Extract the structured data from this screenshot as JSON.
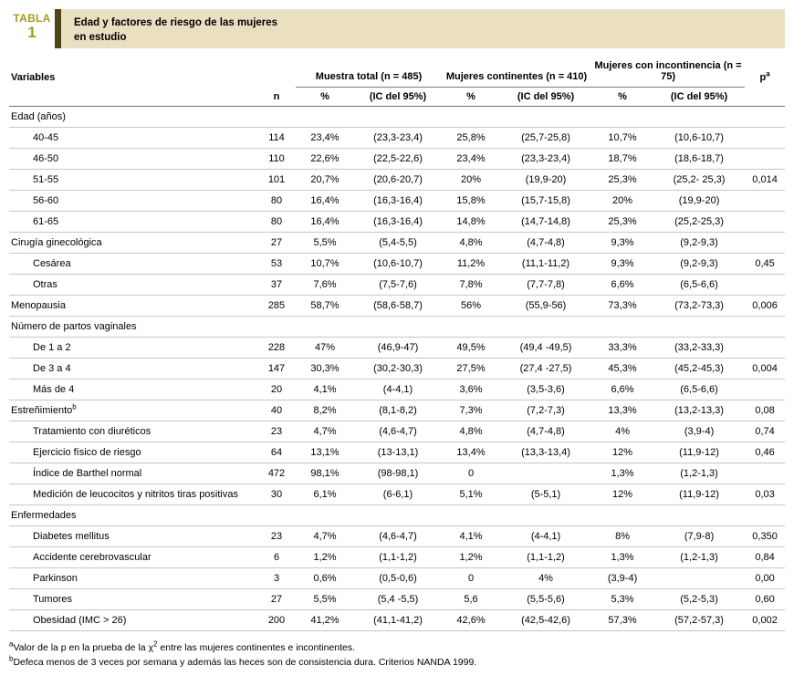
{
  "header": {
    "table_label": "TABLA",
    "table_number": "1",
    "title_line1": "Edad y factores de riesgo de las mujeres",
    "title_line2": "en estudio"
  },
  "table": {
    "columns": {
      "variables": "Variables",
      "n": "n",
      "pct": "%",
      "ic": "(IC del 95%)",
      "p": "p",
      "p_sup": "a",
      "groups": [
        {
          "label": "Muestra total (n = 485)"
        },
        {
          "label": "Mujeres continentes (n = 410)"
        },
        {
          "label": "Mujeres con incontinencia (n = 75)"
        }
      ]
    },
    "rows": [
      {
        "section": true,
        "label": "Edad (años)"
      },
      {
        "label": "40-45",
        "indent": true,
        "n": "114",
        "t_pct": "23,4%",
        "t_ic": "(23,3-23,4)",
        "c_pct": "25,8%",
        "c_ic": "(25,7-25,8)",
        "i_pct": "10,7%",
        "i_ic": "(10,6-10,7)",
        "p": ""
      },
      {
        "label": "46-50",
        "indent": true,
        "n": "110",
        "t_pct": "22,6%",
        "t_ic": "(22,5-22,6)",
        "c_pct": "23,4%",
        "c_ic": "(23,3-23,4)",
        "i_pct": "18,7%",
        "i_ic": "(18,6-18,7)",
        "p": ""
      },
      {
        "label": "51-55",
        "indent": true,
        "n": "101",
        "t_pct": "20,7%",
        "t_ic": "(20,6-20,7)",
        "c_pct": "20%",
        "c_ic": "(19,9-20)",
        "i_pct": "25,3%",
        "i_ic": "(25,2- 25,3)",
        "p": "0,014"
      },
      {
        "label": "56-60",
        "indent": true,
        "n": "80",
        "t_pct": "16,4%",
        "t_ic": "(16,3-16,4)",
        "c_pct": "15,8%",
        "c_ic": "(15,7-15,8)",
        "i_pct": "20%",
        "i_ic": "(19,9-20)",
        "p": ""
      },
      {
        "label": "61-65",
        "indent": true,
        "n": "80",
        "t_pct": "16,4%",
        "t_ic": "(16,3-16,4)",
        "c_pct": "14,8%",
        "c_ic": "(14,7-14,8)",
        "i_pct": "25,3%",
        "i_ic": "(25,2-25,3)",
        "p": ""
      },
      {
        "label": "Cirugía ginecológica",
        "indent": false,
        "n": "27",
        "t_pct": "5,5%",
        "t_ic": "(5,4-5,5)",
        "c_pct": "4,8%",
        "c_ic": "(4,7-4,8)",
        "i_pct": "9,3%",
        "i_ic": "(9,2-9,3)",
        "p": ""
      },
      {
        "label": "Cesárea",
        "indent": true,
        "n": "53",
        "t_pct": "10,7%",
        "t_ic": "(10,6-10,7)",
        "c_pct": "11,2%",
        "c_ic": "(11,1-11,2)",
        "i_pct": "9,3%",
        "i_ic": "(9,2-9,3)",
        "p": "0,45"
      },
      {
        "label": "Otras",
        "indent": true,
        "n": "37",
        "t_pct": "7,6%",
        "t_ic": "(7,5-7,6)",
        "c_pct": "7,8%",
        "c_ic": "(7,7-7,8)",
        "i_pct": "6,6%",
        "i_ic": "(6,5-6,6)",
        "p": ""
      },
      {
        "label": "Menopausia",
        "indent": false,
        "n": "285",
        "t_pct": "58,7%",
        "t_ic": "(58,6-58,7)",
        "c_pct": "56%",
        "c_ic": "(55,9-56)",
        "i_pct": "73,3%",
        "i_ic": "(73,2-73,3)",
        "p": "0,006"
      },
      {
        "section": true,
        "label": "Número de partos vaginales"
      },
      {
        "label": "De 1 a 2",
        "indent": true,
        "n": "228",
        "t_pct": "47%",
        "t_ic": "(46,9-47)",
        "c_pct": "49,5%",
        "c_ic": "(49,4 -49,5)",
        "i_pct": "33,3%",
        "i_ic": "(33,2-33,3)",
        "p": ""
      },
      {
        "label": "De 3 a 4",
        "indent": true,
        "n": "147",
        "t_pct": "30,3%",
        "t_ic": "(30,2-30,3)",
        "c_pct": "27,5%",
        "c_ic": "(27,4 -27,5)",
        "i_pct": "45,3%",
        "i_ic": "(45,2-45,3)",
        "p": "0,004"
      },
      {
        "label": "Más de 4",
        "indent": true,
        "n": "20",
        "t_pct": "4,1%",
        "t_ic": "(4-4,1)",
        "c_pct": "3,6%",
        "c_ic": "(3,5-3,6)",
        "i_pct": "6,6%",
        "i_ic": "(6,5-6,6)",
        "p": ""
      },
      {
        "label": "Estreñimiento",
        "sup": "b",
        "indent": false,
        "n": "40",
        "t_pct": "8,2%",
        "t_ic": "(8,1-8,2)",
        "c_pct": "7,3%",
        "c_ic": "(7,2-7,3)",
        "i_pct": "13,3%",
        "i_ic": "(13,2-13,3)",
        "p": "0,08"
      },
      {
        "label": "Tratamiento con diuréticos",
        "indent": true,
        "n": "23",
        "t_pct": "4,7%",
        "t_ic": "(4,6-4,7)",
        "c_pct": "4,8%",
        "c_ic": "(4,7-4,8)",
        "i_pct": "4%",
        "i_ic": "(3,9-4)",
        "p": "0,74"
      },
      {
        "label": "Ejercicio físico de riesgo",
        "indent": true,
        "n": "64",
        "t_pct": "13,1%",
        "t_ic": "(13-13,1)",
        "c_pct": "13,4%",
        "c_ic": "(13,3-13,4)",
        "i_pct": "12%",
        "i_ic": "(11,9-12)",
        "p": "0,46"
      },
      {
        "label": "Índice de Barthel normal",
        "indent": true,
        "n": "472",
        "t_pct": "98,1%",
        "t_ic": "(98-98,1)",
        "c_pct": "0",
        "c_ic": "",
        "i_pct": "1,3%",
        "i_ic": "(1,2-1,3)",
        "p": ""
      },
      {
        "label": "Medición de leucocitos y nitritos tiras positivas",
        "indent": true,
        "n": "30",
        "t_pct": "6,1%",
        "t_ic": "(6-6,1)",
        "c_pct": "5,1%",
        "c_ic": "(5-5,1)",
        "i_pct": "12%",
        "i_ic": "(11,9-12)",
        "p": "0,03"
      },
      {
        "section": true,
        "label": "Enfermedades"
      },
      {
        "label": "Diabetes mellitus",
        "indent": true,
        "n": "23",
        "t_pct": "4,7%",
        "t_ic": "(4,6-4,7)",
        "c_pct": "4,1%",
        "c_ic": "(4-4,1)",
        "i_pct": "8%",
        "i_ic": "(7,9-8)",
        "p": "0,350"
      },
      {
        "label": "Accidente cerebrovascular",
        "indent": true,
        "n": "6",
        "t_pct": "1,2%",
        "t_ic": "(1,1-1,2)",
        "c_pct": "1,2%",
        "c_ic": "(1,1-1,2)",
        "i_pct": "1,3%",
        "i_ic": "(1,2-1,3)",
        "p": "0,84"
      },
      {
        "label": "Parkinson",
        "indent": true,
        "n": "3",
        "t_pct": "0,6%",
        "t_ic": "(0,5-0,6)",
        "c_pct": "0",
        "c_ic": "4%",
        "i_pct": "(3,9-4)",
        "i_ic": "",
        "p": "0,00"
      },
      {
        "label": "Tumores",
        "indent": true,
        "n": "27",
        "t_pct": "5,5%",
        "t_ic": "(5,4 -5,5)",
        "c_pct": "5,6",
        "c_ic": "(5,5-5,6)",
        "i_pct": "5,3%",
        "i_ic": "(5,2-5,3)",
        "p": "0,60"
      },
      {
        "label": "Obesidad (IMC > 26)",
        "indent": true,
        "n": "200",
        "t_pct": "41,2%",
        "t_ic": "(41,1-41,2)",
        "c_pct": "42,6%",
        "c_ic": "(42,5-42,6)",
        "i_pct": "57,3%",
        "i_ic": "(57,2-57,3)",
        "p": "0,002"
      }
    ]
  },
  "notes": {
    "a": {
      "sup": "a",
      "pre": "Valor de la p en la prueba de la χ",
      "sup2": "2",
      "post": " entre las mujeres continentes e incontinentes."
    },
    "b": {
      "sup": "b",
      "text": "Defeca menos de 3 veces por semana y además las heces son de consistencia dura. Criterios NANDA 1999."
    }
  },
  "colors": {
    "accent_gold": "#a8991f",
    "accent_dark_olive": "#4b4613",
    "title_beige": "#ebdfc1"
  }
}
